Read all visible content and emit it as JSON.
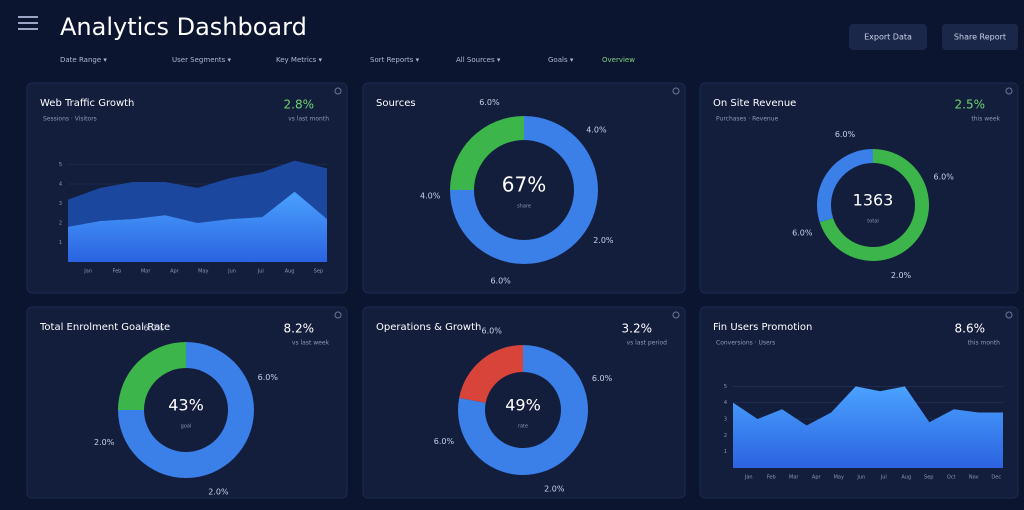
{
  "header": {
    "title": "Analytics Dashboard",
    "tabs": [
      "Date Range ▾",
      "User Segments ▾",
      "Key Metrics ▾",
      "Sort Reports ▾",
      "All Sources ▾",
      "Goals ▾",
      "Overview"
    ],
    "buttons": [
      "Export Data",
      "Share Report"
    ]
  },
  "panels": [
    {
      "title": "Web Traffic Growth",
      "value": "2.8%",
      "subtitle": "Sessions · Visitors",
      "note": "vs last month",
      "chart": {
        "type": "area",
        "x": [
          "Jan",
          "Feb",
          "Mar",
          "Apr",
          "May",
          "Jun",
          "Jul",
          "Aug",
          "Sep"
        ],
        "ylim": [
          0,
          6
        ],
        "yticks": [
          1,
          2,
          3,
          4,
          5
        ],
        "series": [
          {
            "color": "#1f4fb0",
            "values": [
              3.2,
              3.8,
              4.1,
              4.1,
              3.8,
              4.3,
              4.6,
              5.2,
              4.8
            ]
          },
          {
            "color": "#3a8cff",
            "values": [
              1.8,
              2.1,
              2.2,
              2.4,
              2.0,
              2.2,
              2.3,
              3.6,
              2.2
            ]
          }
        ]
      }
    },
    {
      "title": "Sources",
      "chart": {
        "type": "donut",
        "center": "67%",
        "center_note": "share",
        "segments": [
          {
            "color": "#3b7fe8",
            "value": 75
          },
          {
            "color": "#3cb54a",
            "value": 25
          }
        ],
        "ring_labels": [
          "6.0%",
          "4.0%",
          "2.0%",
          "6.0%",
          "4.0%"
        ]
      }
    },
    {
      "title": "On Site Revenue",
      "value": "2.5%",
      "subtitle": "Purchases · Revenue",
      "note": "this week",
      "chart": {
        "type": "donut",
        "center": "1363",
        "center_note": "total",
        "segments": [
          {
            "color": "#3cb54a",
            "value": 70
          },
          {
            "color": "#3b7fe8",
            "value": 30
          }
        ],
        "ring_labels": [
          "6.0%",
          "6.0%",
          "2.0%",
          "6.0%"
        ]
      }
    },
    {
      "title": "Total Enrolment Goal Rate",
      "value": "8.2%",
      "note": "vs last week",
      "chart": {
        "type": "donut",
        "center": "43%",
        "center_note": "goal",
        "segments": [
          {
            "color": "#3b7fe8",
            "value": 75
          },
          {
            "color": "#3cb54a",
            "value": 25
          }
        ],
        "ring_labels": [
          "6.0%",
          "6.0%",
          "2.0%",
          "2.0%"
        ]
      }
    },
    {
      "title": "Operations & Growth",
      "value": "3.2%",
      "note": "vs last period",
      "chart": {
        "type": "donut",
        "center": "49%",
        "center_note": "rate",
        "segments": [
          {
            "color": "#3b7fe8",
            "value": 78
          },
          {
            "color": "#d8443a",
            "value": 22
          }
        ],
        "ring_labels": [
          "6.0%",
          "6.0%",
          "2.0%",
          "6.0%"
        ]
      }
    },
    {
      "title": "Fin Users Promotion",
      "value": "8.6%",
      "subtitle": "Conversions · Users",
      "note": "this month",
      "chart": {
        "type": "area",
        "x": [
          "Jan",
          "Feb",
          "Mar",
          "Apr",
          "May",
          "Jun",
          "Jul",
          "Aug",
          "Sep",
          "Oct",
          "Nov",
          "Dec"
        ],
        "ylim": [
          0,
          6
        ],
        "yticks": [
          1,
          2,
          3,
          4,
          5
        ],
        "series": [
          {
            "color": "#3a8cff",
            "values": [
              4.0,
              3.0,
              3.6,
              2.6,
              3.4,
              5.0,
              4.7,
              5.0,
              2.8,
              3.6,
              3.4,
              3.4
            ]
          }
        ]
      }
    }
  ]
}
